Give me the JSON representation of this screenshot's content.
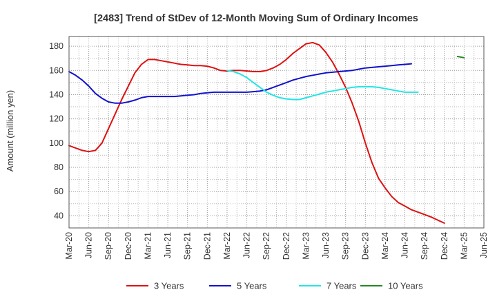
{
  "chart_data": {
    "type": "line",
    "title": "[2483]  Trend of StDev of 12-Month Moving Sum of Ordinary Incomes",
    "xlabel": "",
    "ylabel": "Amount (million yen)",
    "ylim": [
      30,
      188
    ],
    "yticks": [
      40,
      60,
      80,
      100,
      120,
      140,
      160,
      180
    ],
    "x_ticks": [
      "Mar-20",
      "Jun-20",
      "Sep-20",
      "Dec-20",
      "Mar-21",
      "Jun-21",
      "Sep-21",
      "Dec-21",
      "Mar-22",
      "Jun-22",
      "Sep-22",
      "Dec-22",
      "Mar-23",
      "Jun-23",
      "Sep-23",
      "Dec-23",
      "Mar-24",
      "Jun-24",
      "Sep-24",
      "Dec-24",
      "Mar-25",
      "Jun-25"
    ],
    "grid": true,
    "legend_position": "bottom",
    "series": [
      {
        "name": "3 Years",
        "color": "#dd1111",
        "start": "Mar-20",
        "values": [
          98,
          96,
          94,
          93,
          94,
          100,
          112,
          124,
          136,
          147,
          158,
          165,
          169,
          169,
          168,
          167,
          166,
          165,
          164.5,
          164,
          164,
          163.5,
          162,
          160,
          159.5,
          160,
          160,
          159.5,
          159,
          159,
          160,
          162,
          165,
          169,
          174,
          178,
          182,
          183,
          181,
          175,
          167,
          157,
          146,
          133,
          118,
          100,
          84,
          71,
          63,
          56,
          51,
          48,
          45,
          43,
          41,
          39,
          36.5,
          34
        ]
      },
      {
        "name": "5 Years",
        "color": "#1111cc",
        "start": "Mar-20",
        "values": [
          159,
          156,
          152,
          147,
          141,
          137,
          134,
          133,
          133,
          134,
          135.5,
          137.5,
          138.5,
          138.5,
          138.5,
          138.5,
          138.5,
          139,
          139.5,
          140,
          141,
          141.5,
          142,
          142,
          142,
          142,
          142,
          142,
          142.5,
          143,
          144,
          146,
          148,
          150,
          152,
          153.5,
          155,
          156,
          157,
          158,
          158.5,
          159,
          159.5,
          160,
          161,
          162,
          162.5,
          163,
          163.5,
          164,
          164.5,
          165,
          165.5
        ]
      },
      {
        "name": "7 Years",
        "color": "#22e5e5",
        "start": "Mar-22",
        "values": [
          160,
          159,
          157,
          154,
          150,
          146,
          142,
          139.5,
          137.5,
          136.5,
          136,
          136,
          137.5,
          139,
          140.5,
          142,
          143,
          144,
          145,
          146,
          146.5,
          146.5,
          146.5,
          146,
          145,
          144,
          143,
          142,
          142,
          142
        ]
      },
      {
        "name": "10 Years",
        "color": "#228822",
        "start": "Feb-25",
        "values": [
          171.5,
          170.5
        ]
      }
    ]
  }
}
